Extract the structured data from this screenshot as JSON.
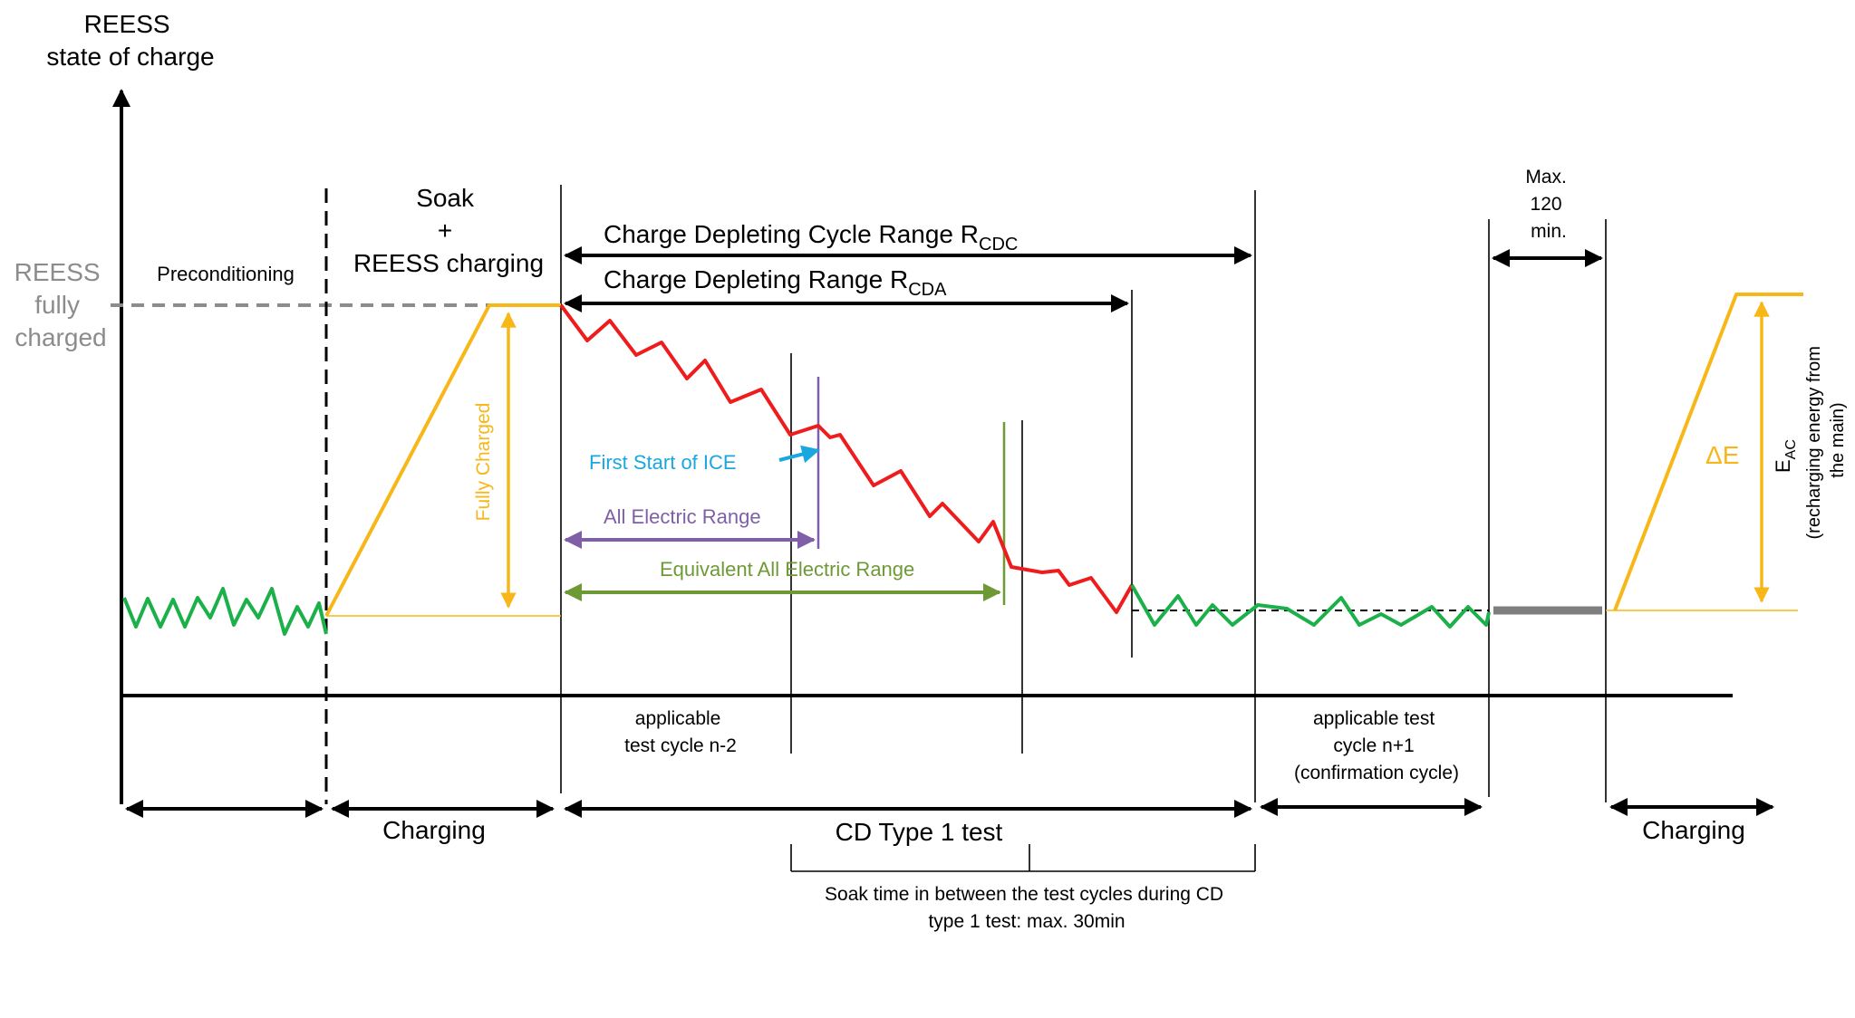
{
  "y_axis": {
    "line1": "REESS",
    "line2": "state of charge"
  },
  "reess_level": {
    "line1": "REESS",
    "line2": "fully",
    "line3": "charged"
  },
  "phases": {
    "preconditioning": "Preconditioning",
    "soak_line1": "Soak",
    "soak_line2": "+",
    "soak_line3": "REESS charging",
    "max_line1": "Max.",
    "max_line2": "120",
    "max_line3": "min."
  },
  "ranges": {
    "rcdc_main": "Charge Depleting Cycle Range R",
    "rcdc_sub": "CDC",
    "rcda_main": "Charge Depleting Range R",
    "rcda_sub": "CDA",
    "first_ice": "First Start of ICE",
    "aer": "All Electric Range",
    "eaer": "Equivalent All Electric Range",
    "fully_charged": "Fully Charged"
  },
  "energy": {
    "delta_e": "ΔE",
    "eac_main": "E",
    "eac_sub": "AC",
    "eac_desc1": "(recharging energy from",
    "eac_desc2": "the main)"
  },
  "cycles": {
    "n2_line1": "applicable",
    "n2_line2": "test cycle n-2",
    "n1_line1": "applicable test",
    "n1_line2": "cycle n+1",
    "n1_line3": "(confirmation cycle)"
  },
  "bottom": {
    "charging_left": "Charging",
    "cd_test": "CD Type 1 test",
    "charging_right": "Charging",
    "soak_note_line1": "Soak time in between the test cycles during CD",
    "soak_note_line2": "type 1 test: max. 30min"
  },
  "colors": {
    "depletion": "#ee1c1c",
    "sustaining": "#1bb04a",
    "charging": "#f7b718",
    "dashed_level": "#8c8c8c",
    "ice_start": "#1aa7e0",
    "aer": "#7e5fa8",
    "eaer": "#6e9a36",
    "label_gray": "#8c8c8c",
    "soak_bar": "#7f7f7f"
  }
}
